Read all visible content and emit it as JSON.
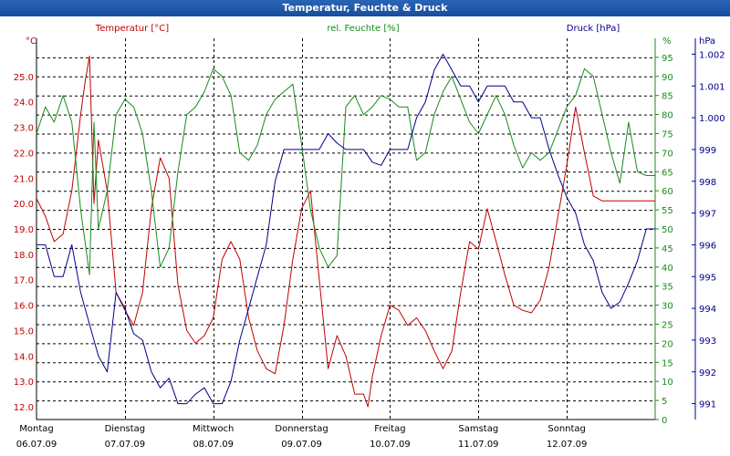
{
  "window": {
    "title": "Temperatur, Feuchte & Druck"
  },
  "colors": {
    "temperature": "#c00000",
    "humidity": "#1a8a1a",
    "pressure": "#00008b",
    "grid": "#000000",
    "background": "#ffffff"
  },
  "chart_data": {
    "type": "line",
    "grid": true,
    "x_start": "06.07.09",
    "x_end": "13.07.09",
    "days": [
      {
        "day": "Montag",
        "date": "06.07.09"
      },
      {
        "day": "Dienstag",
        "date": "07.07.09"
      },
      {
        "day": "Mittwoch",
        "date": "08.07.09"
      },
      {
        "day": "Donnerstag",
        "date": "09.07.09"
      },
      {
        "day": "Freitag",
        "date": "10.07.09"
      },
      {
        "day": "Samstag",
        "date": "11.07.09"
      },
      {
        "day": "Sonntag",
        "date": "12.07.09"
      }
    ],
    "axes": {
      "left": {
        "title": "Temperatur [°C]",
        "unit": "°C",
        "min": 11.5,
        "max": 26.5,
        "ticks": [
          "12.0",
          "13.0",
          "14.0",
          "15.0",
          "16.0",
          "17.0",
          "18.0",
          "19.0",
          "20.0",
          "21.0",
          "22.0",
          "23.0",
          "24.0",
          "25.0"
        ]
      },
      "middle": {
        "title": "rel. Feuchte [%]",
        "unit": "%",
        "min": 0,
        "max": 100,
        "ticks": [
          "0",
          "5",
          "10",
          "15",
          "20",
          "25",
          "30",
          "35",
          "40",
          "45",
          "50",
          "55",
          "60",
          "65",
          "70",
          "75",
          "80",
          "85",
          "90",
          "95"
        ]
      },
      "right": {
        "title": "Druck [hPa]",
        "unit": "hPa",
        "min": 990.5,
        "max": 1002.5,
        "ticks": [
          "991",
          "992",
          "993",
          "994",
          "995",
          "996",
          "997",
          "998",
          "999",
          "1.000",
          "1.001",
          "1.002"
        ]
      }
    },
    "series": [
      {
        "name": "Temperatur [°C]",
        "axis": "left",
        "color": "#c00000",
        "x": [
          0,
          0.1,
          0.2,
          0.3,
          0.4,
          0.5,
          0.55,
          0.6,
          0.65,
          0.7,
          0.8,
          0.9,
          1,
          1.1,
          1.2,
          1.3,
          1.4,
          1.5,
          1.6,
          1.7,
          1.8,
          1.9,
          2,
          2.1,
          2.2,
          2.3,
          2.4,
          2.5,
          2.6,
          2.7,
          2.8,
          2.9,
          3,
          3.1,
          3.2,
          3.3,
          3.4,
          3.5,
          3.6,
          3.7,
          3.75,
          3.8,
          3.9,
          4,
          4.1,
          4.2,
          4.3,
          4.4,
          4.5,
          4.6,
          4.7,
          4.8,
          4.9,
          5,
          5.1,
          5.2,
          5.3,
          5.4,
          5.5,
          5.6,
          5.7,
          5.8,
          5.9,
          6,
          6.1,
          6.2,
          6.3,
          6.4,
          6.5,
          6.6,
          6.7,
          6.8,
          6.9,
          7
        ],
        "y": [
          20.2,
          19.5,
          18.5,
          18.8,
          20.5,
          23.5,
          24.8,
          25.8,
          20.0,
          22.5,
          20.5,
          16.5,
          15.8,
          15.2,
          16.5,
          19.8,
          21.8,
          21.0,
          16.8,
          15.0,
          14.5,
          14.8,
          15.5,
          17.8,
          18.5,
          17.8,
          15.5,
          14.2,
          13.5,
          13.3,
          15.2,
          17.8,
          19.8,
          20.5,
          17.0,
          13.5,
          14.8,
          14.0,
          12.5,
          12.5,
          12.0,
          13.2,
          14.8,
          16.0,
          15.8,
          15.2,
          15.5,
          15.0,
          14.2,
          13.5,
          14.2,
          16.5,
          18.5,
          18.2,
          19.8,
          18.5,
          17.2,
          16.0,
          15.8,
          15.7,
          16.2,
          17.5,
          19.5,
          21.5,
          23.8,
          22.0,
          20.3,
          20.1,
          20.1,
          20.1,
          20.1,
          20.1,
          20.1,
          20.1
        ]
      },
      {
        "name": "rel. Feuchte [%]",
        "axis": "middle",
        "color": "#1a8a1a",
        "x": [
          0,
          0.1,
          0.2,
          0.3,
          0.4,
          0.5,
          0.6,
          0.65,
          0.7,
          0.8,
          0.9,
          1,
          1.1,
          1.2,
          1.3,
          1.4,
          1.5,
          1.6,
          1.7,
          1.8,
          1.9,
          2,
          2.1,
          2.2,
          2.3,
          2.4,
          2.5,
          2.6,
          2.7,
          2.8,
          2.9,
          3,
          3.1,
          3.2,
          3.3,
          3.4,
          3.5,
          3.6,
          3.7,
          3.8,
          3.9,
          4,
          4.1,
          4.2,
          4.3,
          4.4,
          4.5,
          4.6,
          4.7,
          4.8,
          4.9,
          5,
          5.1,
          5.2,
          5.3,
          5.4,
          5.5,
          5.6,
          5.7,
          5.8,
          5.9,
          6,
          6.1,
          6.2,
          6.3,
          6.4,
          6.5,
          6.6,
          6.7,
          6.8,
          6.9,
          7
        ],
        "y": [
          75,
          82,
          78,
          85,
          78,
          55,
          38,
          78,
          50,
          60,
          80,
          84,
          82,
          75,
          60,
          40,
          45,
          65,
          80,
          82,
          86,
          92,
          90,
          85,
          70,
          68,
          72,
          80,
          84,
          86,
          88,
          72,
          55,
          45,
          40,
          43,
          82,
          85,
          80,
          82,
          85,
          84,
          82,
          82,
          68,
          70,
          80,
          86,
          90,
          84,
          78,
          75,
          80,
          85,
          80,
          72,
          66,
          70,
          68,
          70,
          76,
          82,
          85,
          92,
          90,
          80,
          70,
          62,
          78,
          65,
          64,
          64
        ]
      },
      {
        "name": "Druck [hPa]",
        "axis": "right",
        "color": "#00008b",
        "x": [
          0,
          0.1,
          0.2,
          0.3,
          0.4,
          0.5,
          0.6,
          0.7,
          0.8,
          0.9,
          1,
          1.1,
          1.2,
          1.3,
          1.4,
          1.5,
          1.6,
          1.7,
          1.8,
          1.9,
          2,
          2.1,
          2.2,
          2.3,
          2.4,
          2.5,
          2.6,
          2.7,
          2.8,
          2.9,
          3,
          3.1,
          3.2,
          3.3,
          3.4,
          3.5,
          3.6,
          3.7,
          3.8,
          3.9,
          4,
          4.1,
          4.2,
          4.3,
          4.4,
          4.5,
          4.6,
          4.7,
          4.8,
          4.9,
          5,
          5.1,
          5.2,
          5.3,
          5.4,
          5.5,
          5.6,
          5.7,
          5.8,
          5.9,
          6,
          6.1,
          6.2,
          6.3,
          6.4,
          6.5,
          6.6,
          6.7,
          6.8,
          6.9,
          7
        ],
        "y": [
          996,
          996,
          995,
          995,
          996,
          994.5,
          993.5,
          992.5,
          992,
          994.5,
          994,
          993.2,
          993,
          992,
          991.5,
          991.8,
          991,
          991,
          991.3,
          991.5,
          991,
          991,
          991.7,
          993,
          994,
          995,
          996,
          998,
          999,
          999,
          999,
          999,
          999,
          999.5,
          999.2,
          999,
          999,
          999,
          998.6,
          998.5,
          999,
          999,
          999,
          1000,
          1000.5,
          1001.5,
          1002,
          1001.5,
          1001,
          1001,
          1000.5,
          1001,
          1001,
          1001,
          1000.5,
          1000.5,
          1000,
          1000,
          999,
          998.2,
          997.5,
          997,
          996,
          995.5,
          994.5,
          994,
          994.2,
          994.8,
          995.5,
          996.5,
          996.5
        ]
      }
    ]
  }
}
